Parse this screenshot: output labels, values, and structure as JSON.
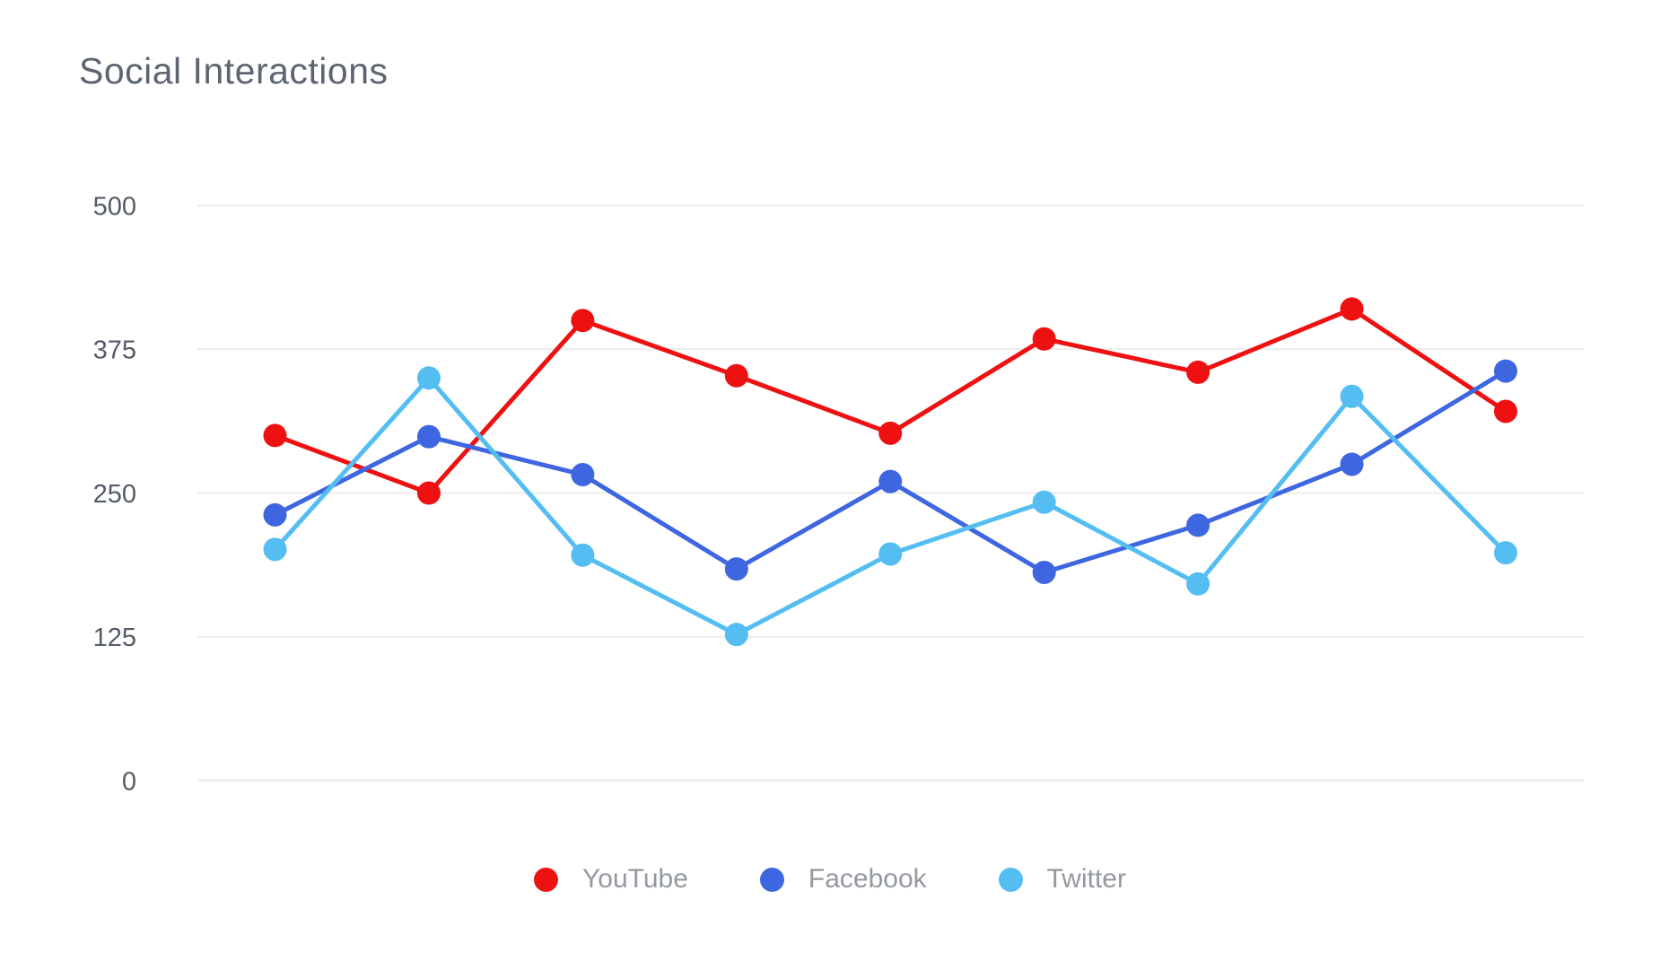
{
  "page": {
    "background_color": "#ffffff"
  },
  "chart_data": {
    "type": "line",
    "title": "Social Interactions",
    "xlabel": "",
    "ylabel": "",
    "x": [
      1,
      2,
      3,
      4,
      5,
      6,
      7,
      8,
      9
    ],
    "x_axis_labels": "none",
    "ylim": [
      0,
      500
    ],
    "yticks": [
      500,
      375,
      250,
      125,
      0
    ],
    "grid": true,
    "legend_position": "bottom",
    "series": [
      {
        "name": "YouTube",
        "color": "#ee1111",
        "values": [
          300,
          250,
          400,
          352,
          302,
          384,
          355,
          410,
          321
        ]
      },
      {
        "name": "Facebook",
        "color": "#3e66e0",
        "values": [
          231,
          299,
          266,
          184,
          260,
          181,
          222,
          275,
          356
        ]
      },
      {
        "name": "Twitter",
        "color": "#54bdf2",
        "values": [
          201,
          350,
          196,
          127,
          197,
          242,
          171,
          334,
          198
        ]
      }
    ]
  },
  "style": {
    "title_color": "#5d6572",
    "tick_label_color": "#545b66",
    "legend_label_color": "#93999f",
    "gridline_color": "#ececeb"
  }
}
